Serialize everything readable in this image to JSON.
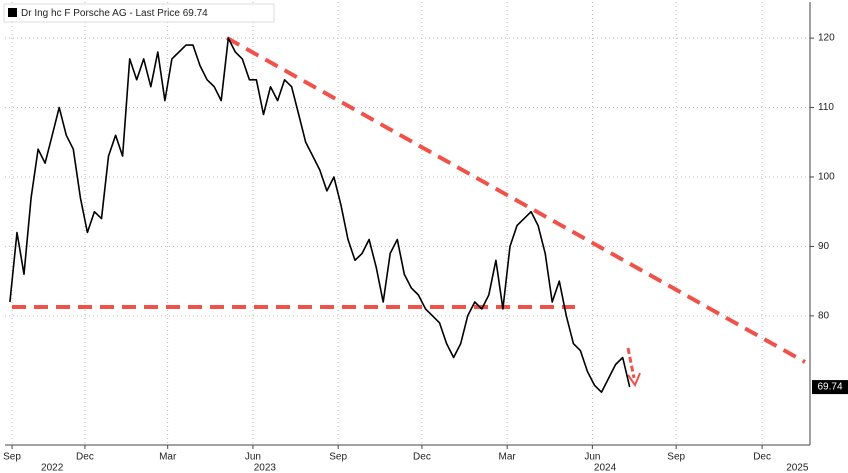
{
  "chart_data": {
    "type": "line",
    "series": [
      {
        "name": "Dr Ing hc F Porsche AG - Last Price 69.74",
        "color": "#000000",
        "values": [
          82,
          92,
          86,
          97,
          104,
          102,
          106,
          110,
          106,
          104,
          97,
          92,
          95,
          94,
          103,
          106,
          103,
          117,
          114,
          117,
          113,
          118,
          111,
          117,
          118,
          119,
          119,
          116,
          114,
          113,
          111,
          120,
          118,
          117,
          114,
          114,
          109,
          113,
          111,
          114,
          113,
          109,
          105,
          103,
          101,
          98,
          100,
          96,
          91,
          88,
          89,
          91,
          87,
          82,
          89,
          91,
          86,
          84,
          83,
          81,
          80,
          79,
          76,
          74,
          76,
          80,
          82,
          81,
          83,
          88,
          81,
          90,
          93,
          94,
          95,
          93,
          89,
          82,
          85,
          80,
          76,
          75,
          72,
          70,
          69,
          71,
          73,
          74,
          69.74
        ]
      }
    ],
    "xlim": [
      -0.7,
      113.6
    ],
    "xticks": [
      {
        "value": 0.3,
        "label": "Sep"
      },
      {
        "value": 10.65,
        "label": "Dec"
      },
      {
        "value": 22.4,
        "label": "Mar"
      },
      {
        "value": 34.5,
        "label": "Jun"
      },
      {
        "value": 46.6,
        "label": "Sep"
      },
      {
        "value": 58.5,
        "label": "Dec"
      },
      {
        "value": 70.6,
        "label": "Mar"
      },
      {
        "value": 82.7,
        "label": "Jun"
      },
      {
        "value": 94.6,
        "label": "Sep"
      },
      {
        "value": 106.8,
        "label": "Dec"
      }
    ],
    "year_ticks": [
      {
        "value": 6,
        "label": "2022"
      },
      {
        "value": 36.2,
        "label": "2023"
      },
      {
        "value": 84.5,
        "label": "2024"
      },
      {
        "value": 111.8,
        "label": "2025"
      }
    ],
    "ylim": [
      61.4,
      125.2
    ],
    "yticks": [
      80,
      90,
      100,
      110,
      120
    ],
    "grid": true
  }
}
